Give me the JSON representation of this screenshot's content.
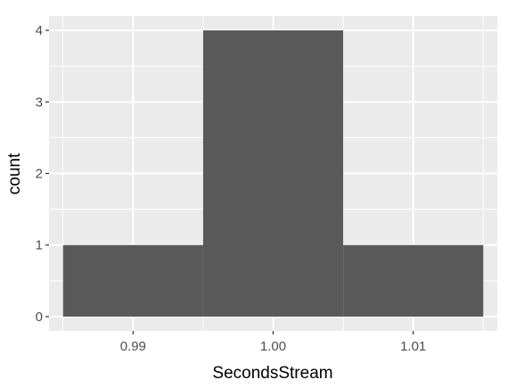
{
  "chart_data": {
    "type": "bar",
    "xlabel": "SecondsStream",
    "ylabel": "count",
    "bins": [
      {
        "start": 0.985,
        "end": 0.995,
        "count": 1
      },
      {
        "start": 0.995,
        "end": 1.005,
        "count": 4
      },
      {
        "start": 1.005,
        "end": 1.015,
        "count": 1
      }
    ],
    "x_ticks": [
      {
        "value": 0.99,
        "label": "0.99"
      },
      {
        "value": 1.0,
        "label": "1.00"
      },
      {
        "value": 1.01,
        "label": "1.01"
      }
    ],
    "y_ticks": [
      {
        "value": 0,
        "label": "0"
      },
      {
        "value": 1,
        "label": "1"
      },
      {
        "value": 2,
        "label": "2"
      },
      {
        "value": 3,
        "label": "3"
      },
      {
        "value": 4,
        "label": "4"
      }
    ],
    "xlim": [
      0.984,
      1.016
    ],
    "ylim": [
      -0.2,
      4.2
    ],
    "grid": true,
    "colors": {
      "panel": "#ebebeb",
      "grid_major": "#ffffff",
      "bar_fill": "#595959",
      "tick_text": "#4d4d4d",
      "tick_mark": "#333333"
    }
  }
}
